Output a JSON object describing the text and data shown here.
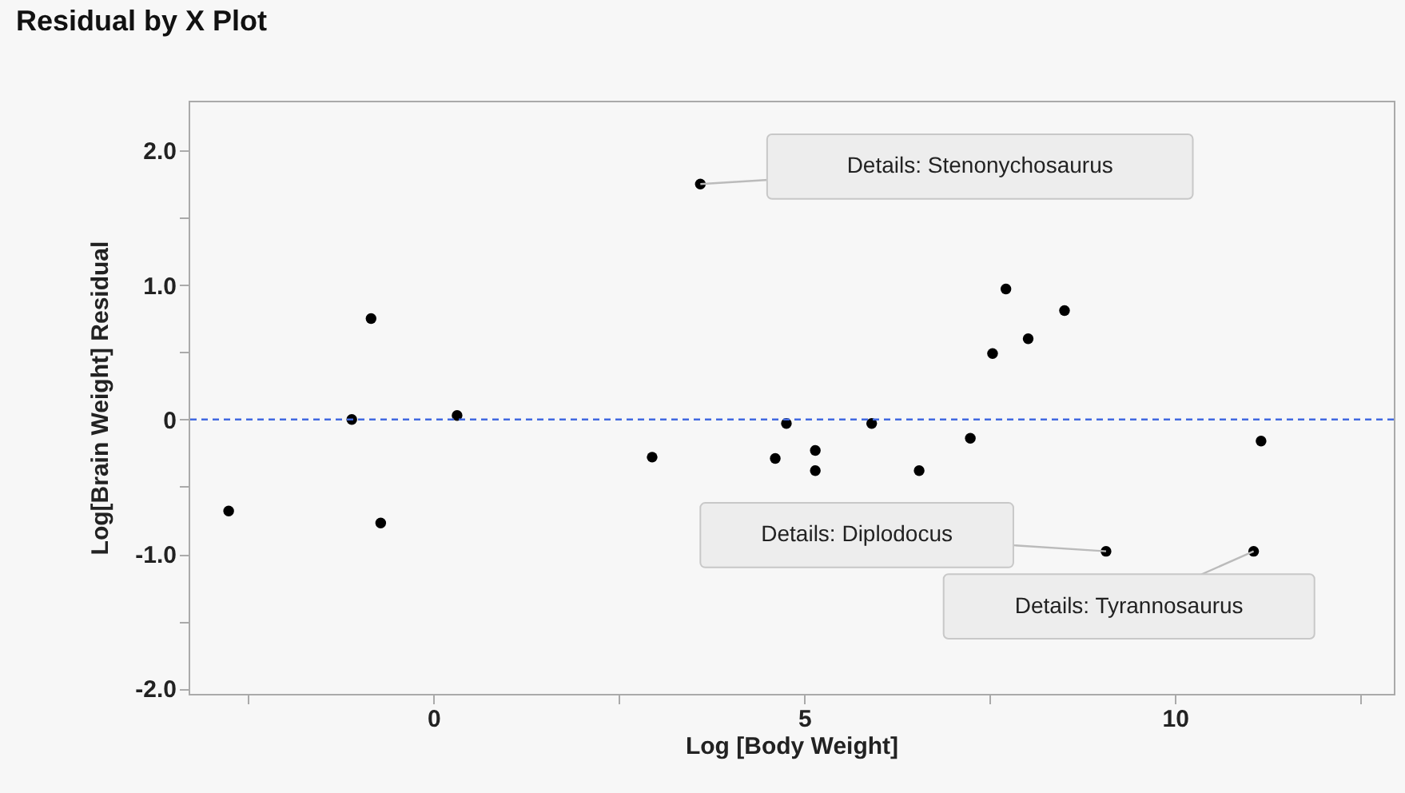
{
  "chart_data": {
    "type": "scatter",
    "title": "Residual by X Plot",
    "xlabel": "Log [Body Weight]",
    "ylabel": "Log[Brain Weight] Residual",
    "x": [
      -2.76,
      -1.1,
      -0.84,
      -0.71,
      0.32,
      2.95,
      3.6,
      4.61,
      4.76,
      5.15,
      5.15,
      5.91,
      6.55,
      7.24,
      7.54,
      7.72,
      8.02,
      8.51,
      9.07,
      11.06,
      11.16
    ],
    "series": [
      {
        "color": "#000000",
        "values": [
          -0.68,
          0.0,
          0.75,
          -0.77,
          0.03,
          -0.28,
          1.75,
          -0.29,
          -0.03,
          -0.23,
          -0.38,
          -0.03,
          -0.38,
          -0.14,
          0.49,
          0.97,
          0.6,
          0.81,
          -0.98,
          -0.98,
          -0.16
        ]
      }
    ],
    "xlim": [
      -3.3,
      12.95
    ],
    "ylim": [
      -2.04,
      2.37
    ],
    "xticks": [
      {
        "value": -2.5,
        "label": null
      },
      0,
      {
        "value": 2.5,
        "label": null
      },
      5,
      {
        "value": 7.5,
        "label": null
      },
      10,
      {
        "value": 12.5,
        "label": null
      }
    ],
    "yticks": [
      {
        "value": -2,
        "label": "-2.0"
      },
      {
        "value": -1.5,
        "label": null
      },
      {
        "value": -1,
        "label": "-1.0"
      },
      {
        "value": -0.5,
        "label": null
      },
      0,
      {
        "value": 0.5,
        "label": null
      },
      {
        "value": 1,
        "label": "1.0"
      },
      {
        "value": 1.5,
        "label": null
      },
      {
        "value": 2,
        "label": "2.0"
      }
    ],
    "ref_lines": [
      {
        "axis": "y",
        "value": 0,
        "color": "#4169e1",
        "line_style": "dashed"
      }
    ],
    "annotations": [
      {
        "text": "Details: Stenonychosaurus",
        "x": 3.6,
        "y": 1.75
      },
      {
        "text": "Details: Diplodocus",
        "x": 9.07,
        "y": -0.98
      },
      {
        "text": "Details: Tyrannosaurus",
        "x": 11.06,
        "y": -0.98
      }
    ],
    "grid": false,
    "marker": "circle"
  }
}
